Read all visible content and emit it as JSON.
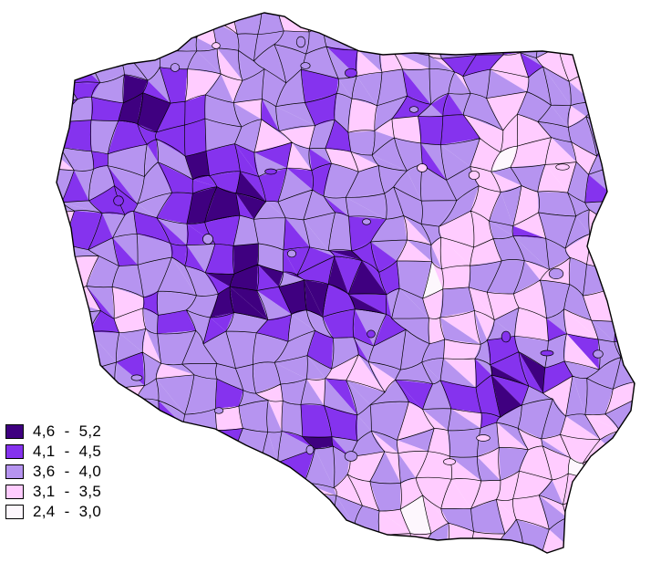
{
  "map": {
    "type": "choropleth",
    "region": "Poland",
    "outline_color": "#000000"
  },
  "legend": {
    "items": [
      {
        "label": "4,6  -  5,2",
        "color": "#3f0080"
      },
      {
        "label": "4,1  -  4,5",
        "color": "#8533ee"
      },
      {
        "label": "3,6  -  4,0",
        "color": "#b694f0"
      },
      {
        "label": "3,1  -  3,5",
        "color": "#ffccff"
      },
      {
        "label": "2,4  -  3,0",
        "color": "#fdf7fd"
      }
    ]
  }
}
